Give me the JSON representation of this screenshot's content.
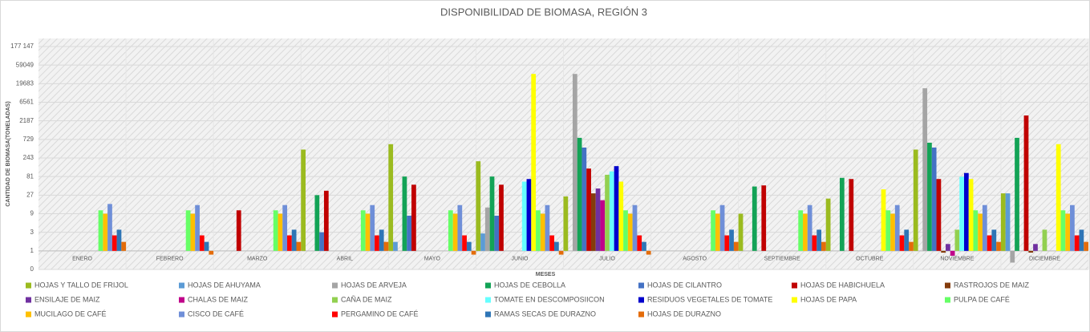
{
  "chart_data": {
    "type": "bar",
    "title": "DISPONIBILIDAD DE BIOMASA, REGIÓN  3",
    "x_label": "MESES",
    "y_label": "CANTIDAD DE BIOMASA(TONELADAS)",
    "yscale": "log",
    "grid": true,
    "categories": [
      "ENERO",
      "FEBRERO",
      "MARZO",
      "ABRIL",
      "MAYO",
      "JUNIO",
      "JULIO",
      "AGOSTO",
      "SEPTIEMBRE",
      "OCTUBRE",
      "NOVIEMBRE",
      "DICIEMBRE"
    ],
    "ylim": [
      0.333333,
      177147
    ],
    "yticks": [
      {
        "value": 0.333333,
        "label": "0"
      },
      1,
      3,
      9,
      27,
      81,
      243,
      729,
      2187,
      6561,
      19683,
      59049,
      {
        "value": 177147,
        "label": "177 147"
      }
    ],
    "series": [
      {
        "name": "HOJAS Y TALLO DE FRIJOL",
        "color": "#9bbb1f",
        "values": [
          null,
          null,
          null,
          400,
          550,
          200,
          25,
          null,
          9,
          22,
          400,
          30
        ]
      },
      {
        "name": "HOJAS DE AHUYAMA",
        "color": "#5b9bd5",
        "values": [
          null,
          null,
          null,
          null,
          1.7,
          2.8,
          null,
          null,
          null,
          null,
          null,
          30
        ]
      },
      {
        "name": "HOJAS DE ARVEJA",
        "color": "#a5a5a5",
        "values": [
          null,
          null,
          null,
          null,
          null,
          13,
          35000,
          null,
          null,
          null,
          15000,
          0.5
        ]
      },
      {
        "name": "HOJAS DE CEBOLLA",
        "color": "#13a356",
        "values": [
          null,
          null,
          null,
          27,
          81,
          81,
          800,
          null,
          45,
          75,
          600,
          800
        ]
      },
      {
        "name": "HOJAS DE CILANTRO",
        "color": "#4472c4",
        "values": [
          null,
          null,
          null,
          3,
          8,
          8,
          450,
          null,
          null,
          null,
          450,
          null
        ]
      },
      {
        "name": "HOJAS DE HABICHUELA",
        "color": "#c00000",
        "values": [
          null,
          null,
          11,
          35,
          50,
          50,
          130,
          null,
          48,
          70,
          70,
          3000
        ]
      },
      {
        "name": "RASTROJOS DE MAIZ",
        "color": "#843c0c",
        "values": [
          null,
          null,
          null,
          null,
          null,
          null,
          30,
          null,
          null,
          null,
          0.9,
          0.9
        ]
      },
      {
        "name": "ENSILAJE DE MAIZ",
        "color": "#7030a0",
        "values": [
          null,
          null,
          null,
          null,
          null,
          null,
          40,
          null,
          null,
          null,
          1.5,
          1.5
        ]
      },
      {
        "name": "CHALAS DE MAIZ",
        "color": "#c0008a",
        "values": [
          null,
          null,
          null,
          null,
          null,
          null,
          20,
          null,
          null,
          null,
          0.75,
          null
        ]
      },
      {
        "name": "CAÑA DE MAIZ",
        "color": "#92d050",
        "values": [
          null,
          null,
          null,
          null,
          null,
          null,
          90,
          null,
          null,
          null,
          3.5,
          3.5
        ]
      },
      {
        "name": "TOMATE EN DESCOMPOSIICON",
        "color": "#66ffff",
        "values": [
          null,
          null,
          null,
          null,
          null,
          60,
          110,
          null,
          null,
          null,
          80,
          null
        ]
      },
      {
        "name": "RESIDUOS VEGETALES DE TOMATE",
        "color": "#0000cc",
        "values": [
          null,
          null,
          null,
          null,
          null,
          70,
          150,
          null,
          null,
          null,
          100,
          null
        ]
      },
      {
        "name": "HOJAS DE PAPA",
        "color": "#ffff00",
        "values": [
          null,
          null,
          null,
          null,
          null,
          35000,
          60,
          null,
          null,
          38,
          70,
          550
        ]
      },
      {
        "name": "PULPA DE CAFÉ",
        "color": "#66ff66",
        "values": [
          11,
          11,
          11,
          11,
          11,
          11,
          11,
          11,
          11,
          11,
          11,
          11
        ]
      },
      {
        "name": "MUCILAGO DE CAFÉ",
        "color": "#ffc000",
        "values": [
          9,
          9,
          9,
          9,
          9,
          9,
          9,
          9,
          9,
          9,
          9,
          9
        ]
      },
      {
        "name": "CISCO DE CAFÉ",
        "color": "#6f8fd8",
        "values": [
          16,
          15,
          15,
          15,
          15,
          15,
          15,
          15,
          15,
          15,
          15,
          15
        ]
      },
      {
        "name": "PERGAMINO DE CAFÉ",
        "color": "#ff0000",
        "values": [
          2.5,
          2.5,
          2.5,
          2.5,
          2.5,
          2.5,
          2.5,
          2.5,
          2.5,
          2.5,
          2.5,
          2.5
        ]
      },
      {
        "name": "RAMAS SECAS DE DURAZNO",
        "color": "#2e75b6",
        "values": [
          3.5,
          1.7,
          3.5,
          3.5,
          1.7,
          1.7,
          1.7,
          3.5,
          3.5,
          3.5,
          3.5,
          3.5
        ]
      },
      {
        "name": "HOJAS DE DURAZNO",
        "color": "#e46c0a",
        "values": [
          1.7,
          0.8,
          1.7,
          1.7,
          0.8,
          0.8,
          0.8,
          1.7,
          1.7,
          1.7,
          1.7,
          1.7
        ]
      }
    ]
  }
}
